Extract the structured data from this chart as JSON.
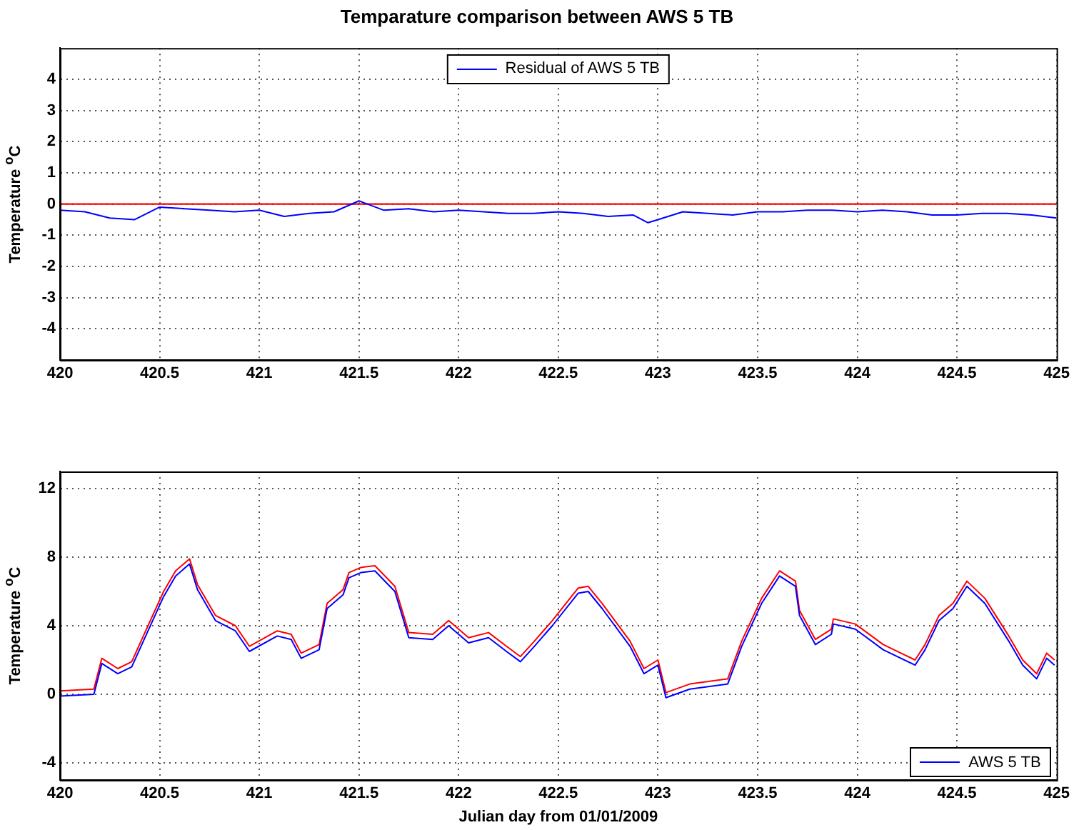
{
  "chart_data": [
    {
      "type": "line",
      "title": "Temparature comparison between AWS 5 TB",
      "ylabel": "Temperature $^{o}$C",
      "xlim": [
        420,
        425
      ],
      "xticks": [
        420,
        420.5,
        421,
        421.5,
        422,
        422.5,
        423,
        423.5,
        424,
        424.5,
        425
      ],
      "ylim": [
        -5,
        5
      ],
      "yticks": [
        -4,
        -3,
        -2,
        -1,
        0,
        1,
        2,
        3,
        4
      ],
      "grid": true,
      "legend": "top",
      "ref_lines": [
        {
          "axis": "y",
          "value": 0,
          "color": "#ff0000"
        }
      ],
      "x": [
        420,
        420.125,
        420.25,
        420.375,
        420.5,
        420.625,
        420.75,
        420.875,
        421,
        421.125,
        421.25,
        421.375,
        421.5,
        421.625,
        421.75,
        421.875,
        422,
        422.125,
        422.25,
        422.375,
        422.5,
        422.625,
        422.75,
        422.875,
        422.95,
        423,
        423.125,
        423.25,
        423.375,
        423.5,
        423.625,
        423.75,
        423.875,
        424,
        424.125,
        424.25,
        424.375,
        424.5,
        424.625,
        424.75,
        424.875,
        425
      ],
      "series": [
        {
          "name": "Residual of AWS 5 TB",
          "color": "#0000ff",
          "values": [
            -0.2,
            -0.25,
            -0.45,
            -0.5,
            -0.1,
            -0.15,
            -0.2,
            -0.25,
            -0.2,
            -0.4,
            -0.3,
            -0.25,
            0.1,
            -0.2,
            -0.15,
            -0.25,
            -0.2,
            -0.25,
            -0.3,
            -0.3,
            -0.25,
            -0.3,
            -0.4,
            -0.35,
            -0.6,
            -0.5,
            -0.25,
            -0.3,
            -0.35,
            -0.25,
            -0.25,
            -0.2,
            -0.2,
            -0.25,
            -0.2,
            -0.25,
            -0.35,
            -0.35,
            -0.3,
            -0.3,
            -0.35,
            -0.45
          ]
        }
      ]
    },
    {
      "type": "line",
      "xlabel": "Julian day from 01/01/2009",
      "ylabel": "Temperature $^{o}$C",
      "xlim": [
        420,
        425
      ],
      "xticks": [
        420,
        420.5,
        421,
        421.5,
        422,
        422.5,
        423,
        423.5,
        424,
        424.5,
        425
      ],
      "ylim": [
        -5,
        13
      ],
      "yticks": [
        -4,
        0,
        4,
        8,
        12
      ],
      "grid": true,
      "legend": "bottom right",
      "x": [
        420,
        420.17,
        420.21,
        420.29,
        420.36,
        420.43,
        420.52,
        420.58,
        420.65,
        420.69,
        420.78,
        420.88,
        420.95,
        421.09,
        421.16,
        421.21,
        421.3,
        421.34,
        421.42,
        421.45,
        421.51,
        421.58,
        421.68,
        421.75,
        421.87,
        421.95,
        422.05,
        422.15,
        422.24,
        422.31,
        422.38,
        422.47,
        422.6,
        422.65,
        422.72,
        422.86,
        422.93,
        423,
        423.04,
        423.16,
        423.35,
        423.42,
        423.52,
        423.61,
        423.69,
        423.71,
        423.79,
        423.87,
        423.88,
        423.99,
        424.13,
        424.29,
        424.34,
        424.41,
        424.48,
        424.55,
        424.64,
        424.76,
        424.83,
        424.9,
        424.95,
        424.99
      ],
      "series": [
        {
          "name": "AWS 5 TB",
          "color": "#0000ff",
          "values": [
            -0.1,
            0,
            1.8,
            1.2,
            1.6,
            3.4,
            5.7,
            6.9,
            7.6,
            6.1,
            4.3,
            3.7,
            2.5,
            3.4,
            3.2,
            2.1,
            2.6,
            5,
            5.8,
            6.8,
            7.1,
            7.2,
            6,
            3.3,
            3.2,
            4,
            3,
            3.3,
            2.5,
            1.9,
            2.8,
            4,
            5.9,
            6,
            5,
            2.8,
            1.2,
            1.7,
            -0.2,
            0.3,
            0.6,
            2.8,
            5.3,
            6.9,
            6.3,
            4.6,
            2.9,
            3.5,
            4.1,
            3.8,
            2.6,
            1.7,
            2.6,
            4.3,
            5,
            6.3,
            5.3,
            3.1,
            1.7,
            0.9,
            2.1,
            1.7
          ]
        },
        {
          "color": "#ff0000",
          "values": [
            0.2,
            0.3,
            2.1,
            1.5,
            1.9,
            3.7,
            6,
            7.2,
            7.9,
            6.4,
            4.6,
            4,
            2.8,
            3.7,
            3.5,
            2.4,
            2.9,
            5.3,
            6.1,
            7.1,
            7.4,
            7.5,
            6.3,
            3.6,
            3.5,
            4.3,
            3.3,
            3.6,
            2.8,
            2.2,
            3.1,
            4.3,
            6.2,
            6.3,
            5.3,
            3.1,
            1.5,
            2,
            0.1,
            0.6,
            0.9,
            3.1,
            5.6,
            7.2,
            6.6,
            4.9,
            3.2,
            3.8,
            4.4,
            4.1,
            2.9,
            2,
            2.9,
            4.6,
            5.3,
            6.6,
            5.6,
            3.4,
            2,
            1.2,
            2.4,
            2
          ]
        }
      ]
    }
  ]
}
